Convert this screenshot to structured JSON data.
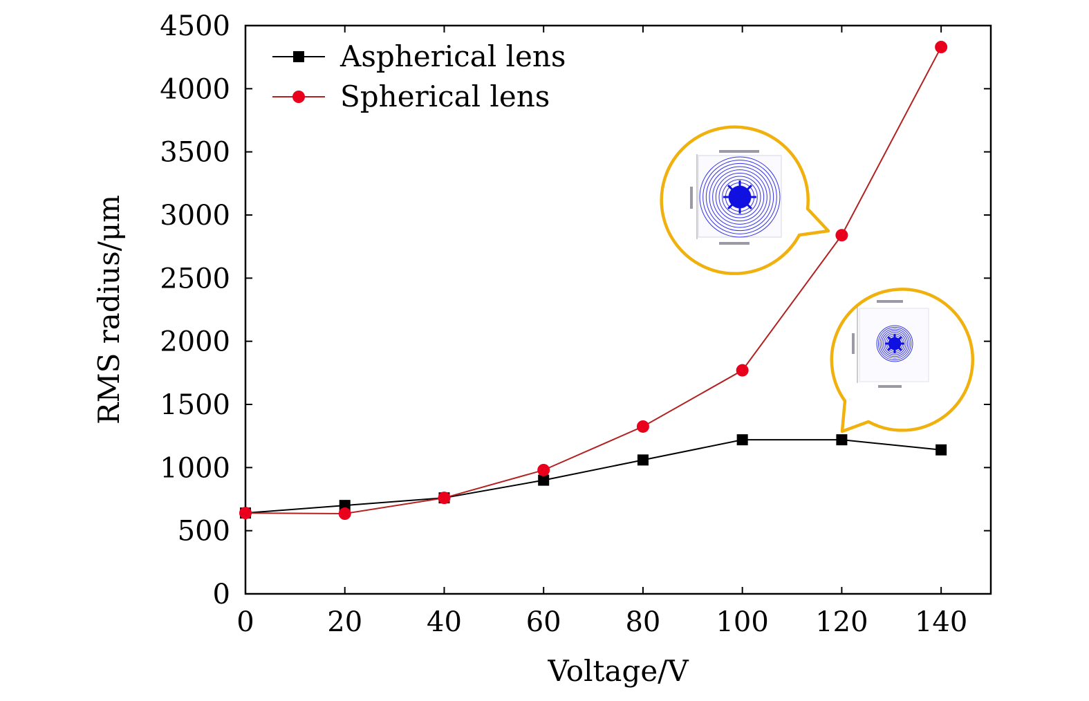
{
  "chart_data": {
    "type": "line",
    "title": "",
    "xlabel": "Voltage/V",
    "ylabel": "RMS radius/μm",
    "x": [
      0,
      20,
      40,
      60,
      80,
      100,
      120,
      140
    ],
    "xlim": [
      0,
      150
    ],
    "ylim": [
      0,
      4500
    ],
    "xticks": [
      0,
      20,
      40,
      60,
      80,
      100,
      120,
      140
    ],
    "yticks": [
      0,
      500,
      1000,
      1500,
      2000,
      2500,
      3000,
      3500,
      4000,
      4500
    ],
    "grid": false,
    "legend_position": "top-left",
    "series": [
      {
        "name": "Aspherical lens",
        "color": "#000000",
        "marker": "square",
        "values": [
          640,
          700,
          760,
          900,
          1060,
          1220,
          1220,
          1140
        ]
      },
      {
        "name": "Spherical lens",
        "color": "#e8001c",
        "line_color": "#b22020",
        "marker": "circle",
        "values": [
          640,
          635,
          760,
          980,
          1325,
          1770,
          2840,
          4330
        ]
      }
    ],
    "insets": [
      {
        "name": "spot-diagram-spherical-120V",
        "border_color": "#f0b10e",
        "spot_color": "#1010e0"
      },
      {
        "name": "spot-diagram-aspherical-120V",
        "border_color": "#f0b10e",
        "spot_color": "#1010e0"
      }
    ]
  }
}
